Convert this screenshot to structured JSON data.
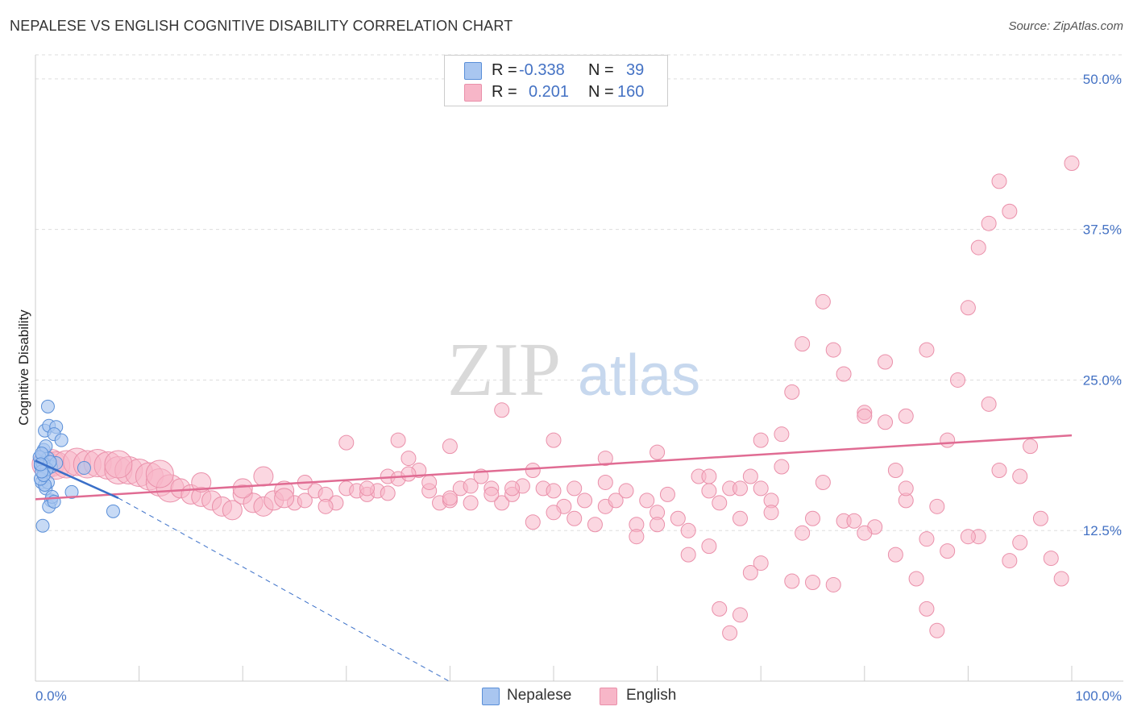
{
  "title": "NEPALESE VS ENGLISH COGNITIVE DISABILITY CORRELATION CHART",
  "source": "Source: ZipAtlas.com",
  "watermark": {
    "zip": "ZIP",
    "atlas": "atlas"
  },
  "legend": {
    "rows": [
      {
        "r_label": "R =",
        "r_value": "-0.338",
        "n_label": "N =",
        "n_value": "39",
        "color": "#a9c6f0"
      },
      {
        "r_label": "R =",
        "r_value": "0.201",
        "n_label": "N =",
        "n_value": "160",
        "color": "#f7b6c8"
      }
    ]
  },
  "bottom_legend": [
    "Nepalese",
    "English"
  ],
  "colors": {
    "nepalese_fill": "#a9c6f0",
    "nepalese_stroke": "#5a8fd8",
    "nepalese_line": "#3a6fc8",
    "english_fill": "#f7b6c8",
    "english_stroke": "#ea90aa",
    "english_line": "#e06c93",
    "tick_text": "#4472c4",
    "grid": "#dddddd"
  },
  "chart_data": {
    "type": "scatter",
    "title": "NEPALESE VS ENGLISH COGNITIVE DISABILITY CORRELATION CHART",
    "xlabel": "",
    "ylabel": "Cognitive Disability",
    "xlim": [
      0,
      100
    ],
    "ylim": [
      0,
      52
    ],
    "y_ticks": [
      12.5,
      25.0,
      37.5,
      50.0
    ],
    "y_tick_labels": [
      "12.5%",
      "25.0%",
      "37.5%",
      "50.0%"
    ],
    "x_tick_labels": [
      "0.0%",
      "100.0%"
    ],
    "grid": true,
    "legend_position": "top-center",
    "series": [
      {
        "name": "Nepalese",
        "points": [
          [
            0.5,
            18.3
          ],
          [
            0.6,
            17.8
          ],
          [
            0.7,
            18.8
          ],
          [
            0.8,
            19.2
          ],
          [
            0.9,
            17.5
          ],
          [
            1.0,
            18.0
          ],
          [
            0.6,
            16.5
          ],
          [
            0.8,
            17.2
          ],
          [
            1.2,
            18.5
          ],
          [
            0.5,
            17.9
          ],
          [
            0.7,
            18.1
          ],
          [
            1.0,
            19.5
          ],
          [
            0.9,
            20.8
          ],
          [
            1.3,
            21.2
          ],
          [
            1.2,
            22.8
          ],
          [
            2.0,
            21.1
          ],
          [
            1.8,
            20.5
          ],
          [
            2.5,
            20.0
          ],
          [
            1.0,
            16.0
          ],
          [
            1.2,
            16.5
          ],
          [
            1.5,
            15.0
          ],
          [
            1.3,
            14.5
          ],
          [
            1.6,
            15.3
          ],
          [
            1.8,
            14.9
          ],
          [
            3.5,
            15.7
          ],
          [
            0.7,
            12.9
          ],
          [
            7.5,
            14.1
          ],
          [
            0.9,
            16.3
          ],
          [
            1.5,
            17.8
          ],
          [
            4.7,
            17.7
          ],
          [
            2.0,
            18.1
          ],
          [
            0.4,
            18.6
          ],
          [
            0.6,
            18.9
          ],
          [
            1.1,
            17.6
          ],
          [
            0.5,
            16.8
          ],
          [
            0.8,
            17.1
          ],
          [
            1.4,
            18.2
          ],
          [
            0.6,
            17.4
          ],
          [
            0.5,
            18.0
          ]
        ],
        "trend": {
          "x": [
            0,
            8
          ],
          "y": [
            18.3,
            15.2
          ]
        },
        "trend_extended": {
          "x": [
            8,
            42
          ],
          "y": [
            15.2,
            -1.0
          ]
        }
      },
      {
        "name": "English",
        "points": [
          [
            1.0,
            18.0
          ],
          [
            1.5,
            18.1
          ],
          [
            2.0,
            17.9
          ],
          [
            3.0,
            18.0
          ],
          [
            4.0,
            18.2
          ],
          [
            5.0,
            18.0
          ],
          [
            6.0,
            18.1
          ],
          [
            7.0,
            17.9
          ],
          [
            8.0,
            17.5
          ],
          [
            9.0,
            17.5
          ],
          [
            10.0,
            17.3
          ],
          [
            11.0,
            17.0
          ],
          [
            12.0,
            16.5
          ],
          [
            13.0,
            16.0
          ],
          [
            14.0,
            16.0
          ],
          [
            15.0,
            15.5
          ],
          [
            16.0,
            15.3
          ],
          [
            17.0,
            15.0
          ],
          [
            18.0,
            14.5
          ],
          [
            19.0,
            14.2
          ],
          [
            20.0,
            15.5
          ],
          [
            21.0,
            14.8
          ],
          [
            22.0,
            14.5
          ],
          [
            23.0,
            15.0
          ],
          [
            24.0,
            15.8
          ],
          [
            25.0,
            14.8
          ],
          [
            26.0,
            15.0
          ],
          [
            27.0,
            15.8
          ],
          [
            28.0,
            15.5
          ],
          [
            29.0,
            14.8
          ],
          [
            30.0,
            16.0
          ],
          [
            31.0,
            15.8
          ],
          [
            32.0,
            15.5
          ],
          [
            33.0,
            15.8
          ],
          [
            34.0,
            17.0
          ],
          [
            35.0,
            16.8
          ],
          [
            36.0,
            18.5
          ],
          [
            37.0,
            17.5
          ],
          [
            38.0,
            15.8
          ],
          [
            39.0,
            14.8
          ],
          [
            40.0,
            15.0
          ],
          [
            41.0,
            16.0
          ],
          [
            42.0,
            16.2
          ],
          [
            43.0,
            17.0
          ],
          [
            44.0,
            16.0
          ],
          [
            45.0,
            14.8
          ],
          [
            46.0,
            15.5
          ],
          [
            47.0,
            16.2
          ],
          [
            48.0,
            17.5
          ],
          [
            49.0,
            16.0
          ],
          [
            50.0,
            15.8
          ],
          [
            51.0,
            14.5
          ],
          [
            52.0,
            13.5
          ],
          [
            53.0,
            15.0
          ],
          [
            54.0,
            13.0
          ],
          [
            55.0,
            14.5
          ],
          [
            56.0,
            15.0
          ],
          [
            57.0,
            15.8
          ],
          [
            58.0,
            13.0
          ],
          [
            59.0,
            15.0
          ],
          [
            60.0,
            14.0
          ],
          [
            61.0,
            15.5
          ],
          [
            62.0,
            13.5
          ],
          [
            63.0,
            12.5
          ],
          [
            64.0,
            17.0
          ],
          [
            65.0,
            15.8
          ],
          [
            66.0,
            14.8
          ],
          [
            67.0,
            16.0
          ],
          [
            68.0,
            13.5
          ],
          [
            69.0,
            17.0
          ],
          [
            70.0,
            9.8
          ],
          [
            71.0,
            15.0
          ],
          [
            72.0,
            17.8
          ],
          [
            73.0,
            8.3
          ],
          [
            74.0,
            12.3
          ],
          [
            75.0,
            13.5
          ],
          [
            76.0,
            16.5
          ],
          [
            77.0,
            8.0
          ],
          [
            78.0,
            13.3
          ],
          [
            79.0,
            13.3
          ],
          [
            80.0,
            22.3
          ],
          [
            81.0,
            12.8
          ],
          [
            82.0,
            26.5
          ],
          [
            83.0,
            17.5
          ],
          [
            84.0,
            15.0
          ],
          [
            85.0,
            8.5
          ],
          [
            86.0,
            6.0
          ],
          [
            87.0,
            14.5
          ],
          [
            88.0,
            20.0
          ],
          [
            89.0,
            25.0
          ],
          [
            90.0,
            31.0
          ],
          [
            91.0,
            12.0
          ],
          [
            92.0,
            23.0
          ],
          [
            93.0,
            17.5
          ],
          [
            94.0,
            10.0
          ],
          [
            95.0,
            11.5
          ],
          [
            22.0,
            17.0
          ],
          [
            26.0,
            16.5
          ],
          [
            30.0,
            19.8
          ],
          [
            35.0,
            20.0
          ],
          [
            40.0,
            19.5
          ],
          [
            45.0,
            22.5
          ],
          [
            50.0,
            20.0
          ],
          [
            55.0,
            18.5
          ],
          [
            60.0,
            19.0
          ],
          [
            65.0,
            17.0
          ],
          [
            68.0,
            16.0
          ],
          [
            70.0,
            20.0
          ],
          [
            73.0,
            24.0
          ],
          [
            77.0,
            27.5
          ],
          [
            80.0,
            22.0
          ],
          [
            82.0,
            21.5
          ],
          [
            84.0,
            16.0
          ],
          [
            86.0,
            11.8
          ],
          [
            88.0,
            10.8
          ],
          [
            90.0,
            12.0
          ],
          [
            91.0,
            36.0
          ],
          [
            92.0,
            38.0
          ],
          [
            93.0,
            41.5
          ],
          [
            94.0,
            39.0
          ],
          [
            95.0,
            17.0
          ],
          [
            96.0,
            19.5
          ],
          [
            97.0,
            13.5
          ],
          [
            98.0,
            10.2
          ],
          [
            99.0,
            8.5
          ],
          [
            100.0,
            43.0
          ],
          [
            87.0,
            4.2
          ],
          [
            86.0,
            27.5
          ],
          [
            84.0,
            22.0
          ],
          [
            83.0,
            10.5
          ],
          [
            80.0,
            12.3
          ],
          [
            78.0,
            25.5
          ],
          [
            76.0,
            31.5
          ],
          [
            75.0,
            8.2
          ],
          [
            74.0,
            28.0
          ],
          [
            72.0,
            20.5
          ],
          [
            71.0,
            14.0
          ],
          [
            70.0,
            16.0
          ],
          [
            69.0,
            9.0
          ],
          [
            68.0,
            5.5
          ],
          [
            67.0,
            4.0
          ],
          [
            66.0,
            6.0
          ],
          [
            65.0,
            11.2
          ],
          [
            63.0,
            10.5
          ],
          [
            60.0,
            13.0
          ],
          [
            58.0,
            12.0
          ],
          [
            55.0,
            16.5
          ],
          [
            52.0,
            16.0
          ],
          [
            50.0,
            14.0
          ],
          [
            48.0,
            13.2
          ],
          [
            46.0,
            16.0
          ],
          [
            44.0,
            15.5
          ],
          [
            42.0,
            14.8
          ],
          [
            40.0,
            15.2
          ],
          [
            38.0,
            16.5
          ],
          [
            36.0,
            17.2
          ],
          [
            34.0,
            15.6
          ],
          [
            32.0,
            16.0
          ],
          [
            28.0,
            14.5
          ],
          [
            24.0,
            15.2
          ],
          [
            20.0,
            16.0
          ],
          [
            16.0,
            16.5
          ],
          [
            12.0,
            17.2
          ],
          [
            8.0,
            18.0
          ]
        ],
        "trend": {
          "x": [
            0,
            100
          ],
          "y": [
            15.1,
            20.4
          ]
        }
      }
    ]
  }
}
